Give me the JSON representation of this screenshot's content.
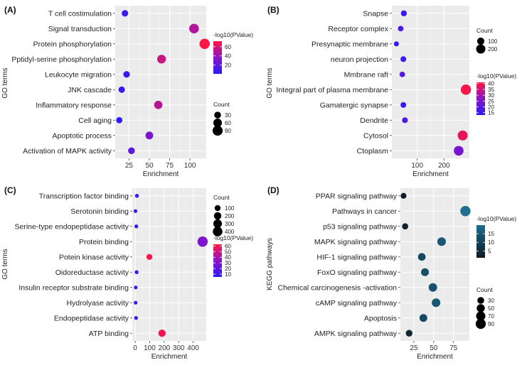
{
  "chart_data": [
    {
      "panel_label": "(A)",
      "type": "scatter",
      "xlabel": "Enrichment",
      "ylabel": "GO terms",
      "xlim": [
        8,
        120
      ],
      "xticks": [
        25,
        50,
        75,
        100
      ],
      "categories": [
        "T cell costimulation",
        "Signal transduction",
        "Protein phosphorylation",
        "Pptidyl-serine phosphorylation",
        "Leukocyte migration",
        "JNK cascade",
        "Inflammatory response",
        "Cell aging",
        "Apoptotic process",
        "Activation of MAPK activity"
      ],
      "enrichment": [
        20,
        105,
        118,
        65,
        22,
        16,
        61,
        13,
        50,
        28
      ],
      "count": [
        27,
        82,
        95,
        62,
        28,
        25,
        55,
        23,
        45,
        30
      ],
      "neg_log10_pvalue": [
        8,
        48,
        72,
        55,
        6,
        4,
        50,
        2,
        30,
        20
      ],
      "size_legend": {
        "title": "Count",
        "values": [
          30,
          60,
          90
        ]
      },
      "color_legend": {
        "title": "-log10(PValue)",
        "ticks": [
          20,
          40,
          60
        ],
        "range": [
          1,
          72
        ],
        "colors": [
          "#2b1bf5",
          "#8a14c7",
          "#ff1640"
        ]
      },
      "grid": true
    },
    {
      "panel_label": "(B)",
      "type": "scatter",
      "xlabel": "Enrichment",
      "ylabel": "GO terms",
      "xlim": [
        5,
        295
      ],
      "xticks": [
        100,
        200
      ],
      "categories": [
        "Snapse",
        "Receptor complex",
        "Presynaptic membrane",
        "neuron projection",
        "Mmbrane raft",
        "Integral part of plasma membrane",
        "Gamatergic synapse",
        "Dendrite",
        "Cytosol",
        "Ctoplasm"
      ],
      "enrichment": [
        50,
        38,
        22,
        48,
        44,
        282,
        48,
        54,
        270,
        255
      ],
      "count": [
        55,
        45,
        30,
        50,
        45,
        260,
        48,
        50,
        245,
        225
      ],
      "neg_log10_pvalue": [
        15,
        18,
        14,
        16,
        19,
        40,
        15,
        18,
        38,
        24
      ],
      "size_legend": {
        "title": "Count",
        "values": [
          100,
          200
        ]
      },
      "color_legend": {
        "title": "-log10(PValue)",
        "ticks": [
          15,
          20,
          25,
          30,
          35,
          40
        ],
        "range": [
          13,
          41
        ],
        "colors": [
          "#2b1bf5",
          "#8a14c7",
          "#ff1640"
        ]
      },
      "grid": true
    },
    {
      "panel_label": "(C)",
      "type": "scatter",
      "xlabel": "Enrichment",
      "ylabel": "GO terms",
      "xlim": [
        -20,
        490
      ],
      "xticks": [
        0,
        100,
        200,
        300,
        400
      ],
      "categories": [
        "Transcription factor binding",
        "Serotonin binding",
        "Serine-type endopeptidase activity",
        "Protein binding",
        "Potein kinase activity",
        "Oidoreductase activity",
        "Insulin receptor substrate binding",
        "Hydrolyase activity",
        "Endopeptidase activity",
        "ATP binding"
      ],
      "enrichment": [
        12,
        2,
        8,
        465,
        98,
        10,
        4,
        3,
        6,
        185
      ],
      "count": [
        20,
        15,
        18,
        470,
        100,
        20,
        14,
        14,
        18,
        190
      ],
      "neg_log10_pvalue": [
        12,
        8,
        10,
        30,
        62,
        12,
        6,
        7,
        10,
        60
      ],
      "size_legend": {
        "title": "Count",
        "values": [
          100,
          200,
          300,
          400
        ]
      },
      "color_legend": {
        "title": "-log10(PValue)",
        "ticks": [
          10,
          20,
          30,
          40,
          50,
          60
        ],
        "range": [
          5,
          63
        ],
        "colors": [
          "#2b1bf5",
          "#8a14c7",
          "#ff1640"
        ]
      },
      "grid": true
    },
    {
      "panel_label": "(D)",
      "type": "scatter",
      "xlabel": "Enrichment",
      "ylabel": "KEGG pathways",
      "xlim": [
        8,
        95
      ],
      "xticks": [
        25,
        50,
        75
      ],
      "categories": [
        "PPAR signaling pathway",
        "Pathways in cancer",
        "p53 signaling pathway",
        "MAPK signaling pathway",
        "HIF-1 signaling pathway",
        "FoxO signaling pathway",
        "Chemical carcinogenesis -activation",
        "cAMP signaling pathway",
        "Apoptosis",
        "AMPK signaling pathway"
      ],
      "enrichment": [
        12,
        90,
        14,
        60,
        35,
        39,
        49,
        53,
        37,
        19
      ],
      "count": [
        18,
        92,
        22,
        58,
        42,
        46,
        56,
        58,
        44,
        28
      ],
      "neg_log10_pvalue": [
        2,
        20,
        3,
        15,
        12,
        13,
        14,
        15,
        12,
        4
      ],
      "size_legend": {
        "title": "Count",
        "values": [
          30,
          50,
          70,
          90
        ]
      },
      "color_legend": {
        "title": "-log10(PValue)",
        "ticks": [
          5,
          10,
          15
        ],
        "range": [
          1,
          20
        ],
        "colors": [
          "#0e1a24",
          "#14425a",
          "#1f6f8f"
        ]
      },
      "grid": true
    }
  ]
}
